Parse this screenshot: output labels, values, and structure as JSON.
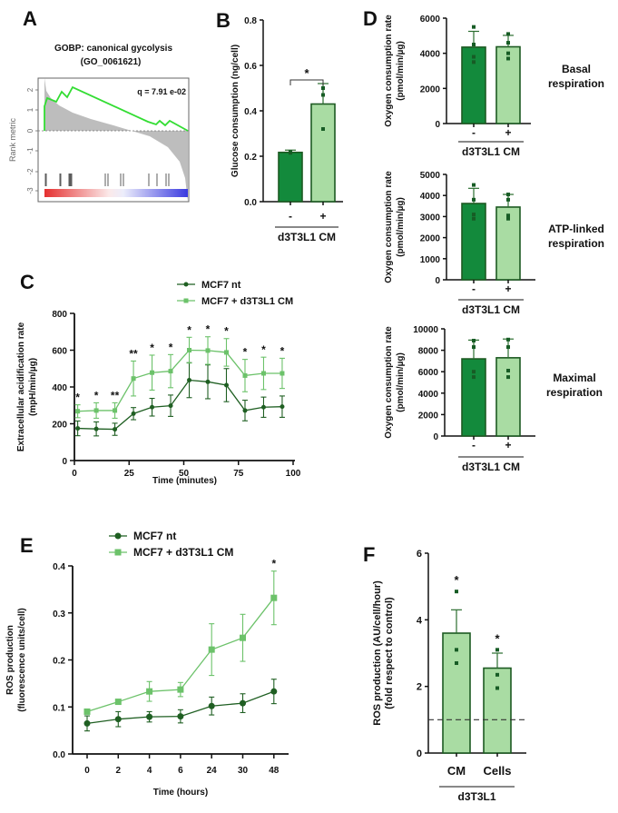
{
  "colors": {
    "dark_green": "#138a3c",
    "light_green": "#a9dca3",
    "nt_line": "#1f5f22",
    "cm_line": "#6cc26a",
    "gsea_curve": "#33dd33",
    "gsea_area": "#bdbdbd"
  },
  "panel_labels": [
    "A",
    "B",
    "C",
    "D",
    "E",
    "F"
  ],
  "chart_data": [
    {
      "id": "A",
      "type": "gsea",
      "title": [
        "GOBP: canonical gycolysis",
        "(GO_0061621)"
      ],
      "annotation": "q = 7.91 e-02",
      "ylabel": "Rank metric",
      "yticks": [
        "2",
        "1",
        "0",
        "-1",
        "-2",
        "-3"
      ]
    },
    {
      "id": "B",
      "type": "bar",
      "categories": [
        "-",
        "+"
      ],
      "group_label": "d3T3L1 CM",
      "ylabel": [
        "Glucose consumption (ng/cell)"
      ],
      "ylim": [
        0,
        0.8
      ],
      "yticks": [
        "0.0",
        "0.2",
        "0.4",
        "0.6",
        "0.8"
      ],
      "values": [
        0.217,
        0.43
      ],
      "errors": [
        0.01,
        0.09
      ],
      "points": [
        [
          0.215,
          0.22,
          0.218
        ],
        [
          0.5,
          0.47,
          0.32
        ]
      ],
      "significance": "*",
      "bar_colors": [
        "dark_green",
        "light_green"
      ]
    },
    {
      "id": "C",
      "type": "line",
      "xlabel": "Time (minutes)",
      "ylabel": [
        "Extracellular acidification rate",
        "(mpH/min/µg)"
      ],
      "xlim": [
        0,
        100
      ],
      "xticks": [
        "0",
        "25",
        "50",
        "75",
        "100"
      ],
      "ylim": [
        0,
        800
      ],
      "yticks": [
        "0",
        "200",
        "400",
        "600",
        "800"
      ],
      "x": [
        1.5,
        10,
        18.5,
        27,
        35.5,
        44,
        52.5,
        61,
        69.5,
        78,
        86.5,
        95
      ],
      "series": [
        {
          "name": "MCF7 nt",
          "marker": "circle",
          "color": "nt_line",
          "values": [
            175,
            172,
            170,
            255,
            290,
            298,
            437,
            428,
            410,
            272,
            290,
            293
          ],
          "errors": [
            40,
            38,
            33,
            33,
            48,
            58,
            95,
            92,
            90,
            56,
            55,
            58
          ]
        },
        {
          "name": "MCF7 + d3T3L1 CM",
          "marker": "square",
          "color": "cm_line",
          "values": [
            268,
            272,
            272,
            446,
            478,
            486,
            600,
            598,
            588,
            462,
            474,
            474
          ],
          "errors": [
            35,
            42,
            42,
            95,
            95,
            90,
            70,
            75,
            75,
            88,
            88,
            82
          ]
        }
      ],
      "significance": [
        "*",
        "*",
        "**",
        "**",
        "*",
        "*",
        "*",
        "*",
        "*",
        "*",
        "*",
        "*"
      ],
      "legend": "top"
    },
    {
      "id": "D-basal",
      "type": "bar",
      "categories": [
        "-",
        "+"
      ],
      "group_label": "d3T3L1 CM",
      "side_label": [
        "Basal",
        "respiration"
      ],
      "ylabel": [
        "Oxygen consumption rate",
        "(pmol/min/µg)"
      ],
      "ylim": [
        0,
        6000
      ],
      "yticks": [
        "0",
        "2000",
        "4000",
        "6000"
      ],
      "values": [
        4350,
        4370
      ],
      "errors": [
        900,
        650
      ],
      "points": [
        [
          5500,
          4500,
          3800,
          3500
        ],
        [
          5100,
          4600,
          4000,
          3700
        ]
      ],
      "bar_colors": [
        "dark_green",
        "light_green"
      ]
    },
    {
      "id": "D-atp",
      "type": "bar",
      "categories": [
        "-",
        "+"
      ],
      "group_label": "d3T3L1 CM",
      "side_label": [
        "ATP-linked",
        "respiration"
      ],
      "ylabel": [
        "Oxygen consumption rate",
        "(pmol/min/µg)"
      ],
      "ylim": [
        0,
        5000
      ],
      "yticks": [
        "0",
        "1000",
        "2000",
        "3000",
        "4000",
        "5000"
      ],
      "values": [
        3620,
        3450
      ],
      "errors": [
        720,
        600
      ],
      "points": [
        [
          4500,
          3800,
          3100,
          2900
        ],
        [
          4050,
          3800,
          3050,
          2900
        ]
      ],
      "bar_colors": [
        "dark_green",
        "light_green"
      ]
    },
    {
      "id": "D-maximal",
      "type": "bar",
      "categories": [
        "-",
        "+"
      ],
      "group_label": "d3T3L1 CM",
      "side_label": [
        "Maximal",
        "respiration"
      ],
      "ylabel": [
        "Oxygen consumption rate",
        "(pmol/min/µg)"
      ],
      "ylim": [
        0,
        10000
      ],
      "yticks": [
        "0",
        "2000",
        "4000",
        "6000",
        "8000",
        "10000"
      ],
      "values": [
        7200,
        7300
      ],
      "errors": [
        1750,
        1750
      ],
      "points": [
        [
          8900,
          8300,
          6000,
          5500
        ],
        [
          9000,
          8300,
          6100,
          5500
        ]
      ],
      "bar_colors": [
        "dark_green",
        "light_green"
      ]
    },
    {
      "id": "E",
      "type": "line",
      "xlabel": "Time (hours)",
      "ylabel": [
        "ROS production",
        "(fluorescence units/cell)"
      ],
      "categories": [
        "0",
        "2",
        "4",
        "6",
        "24",
        "30",
        "48"
      ],
      "ylim": [
        0,
        0.4
      ],
      "yticks": [
        "0.0",
        "0.1",
        "0.2",
        "0.3",
        "0.4"
      ],
      "series": [
        {
          "name": "MCF7 nt",
          "marker": "circle",
          "color": "nt_line",
          "values": [
            0.065,
            0.074,
            0.079,
            0.08,
            0.102,
            0.108,
            0.133
          ],
          "errors": [
            0.016,
            0.016,
            0.011,
            0.014,
            0.019,
            0.02,
            0.026
          ]
        },
        {
          "name": "MCF7 + d3T3L1 CM",
          "marker": "square",
          "color": "cm_line",
          "values": [
            0.09,
            0.111,
            0.133,
            0.137,
            0.222,
            0.247,
            0.332
          ],
          "errors": [
            0.004,
            0.003,
            0.021,
            0.015,
            0.055,
            0.05,
            0.057
          ]
        }
      ],
      "significance": [
        "",
        "",
        "",
        "",
        "",
        "",
        "*"
      ],
      "legend": "top"
    },
    {
      "id": "F",
      "type": "bar",
      "categories": [
        "CM",
        "Cells"
      ],
      "group_label": "d3T3L1",
      "ylabel": [
        "ROS production (AU/cell/hour)",
        "(fold respect to control)"
      ],
      "ylim": [
        0,
        6
      ],
      "yticks": [
        "0",
        "2",
        "4",
        "6"
      ],
      "values": [
        3.6,
        2.55
      ],
      "errors": [
        0.7,
        0.45
      ],
      "points": [
        [
          4.85,
          3.1,
          2.7
        ],
        [
          3.1,
          2.35,
          1.95
        ]
      ],
      "significance": [
        "*",
        "*"
      ],
      "reference_line": 1,
      "bar_colors": [
        "light_green",
        "light_green"
      ]
    }
  ]
}
